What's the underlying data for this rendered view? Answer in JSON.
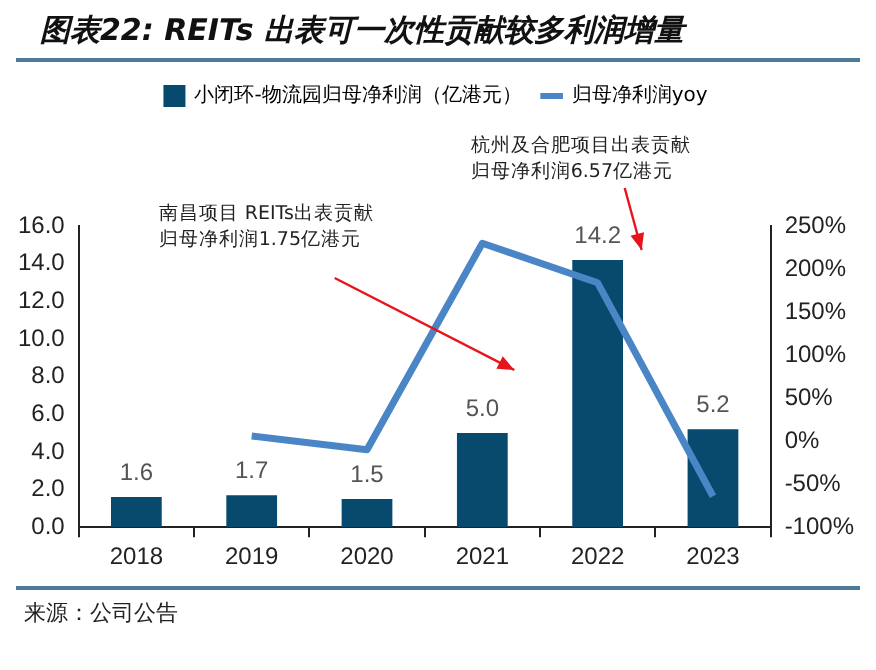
{
  "chart_data": {
    "type": "bar",
    "title": "图表22: REITs 出表可一次性贡献较多利润增量",
    "categories": [
      "2018",
      "2019",
      "2020",
      "2021",
      "2022",
      "2023"
    ],
    "series": [
      {
        "name": "小闭环-物流园归母净利润（亿港元）",
        "color": "#074a6e",
        "values": [
          1.6,
          1.7,
          1.5,
          5.0,
          14.2,
          5.2
        ],
        "value_labels": [
          "1.6",
          "1.7",
          "1.5",
          "5.0",
          "14.2",
          "5.2"
        ]
      },
      {
        "name": "归母净利润yoy",
        "type": "line",
        "axis": "y2",
        "color": "#4a86c5",
        "values": [
          null,
          6,
          -10,
          230,
          184,
          -64
        ]
      }
    ],
    "ylim": [
      0,
      16
    ],
    "yticks": [
      {
        "value": 0,
        "label": "0.0"
      },
      {
        "value": 2,
        "label": "2.0"
      },
      {
        "value": 4,
        "label": "4.0"
      },
      {
        "value": 6,
        "label": "6.0"
      },
      {
        "value": 8,
        "label": "8.0"
      },
      {
        "value": 10,
        "label": "10.0"
      },
      {
        "value": 12,
        "label": "12.0"
      },
      {
        "value": 14,
        "label": "14.0"
      },
      {
        "value": 16,
        "label": "16.0"
      }
    ],
    "y2lim": [
      -100,
      250
    ],
    "y2ticks": [
      {
        "value": -100,
        "label": "-100%"
      },
      {
        "value": -50,
        "label": "-50%"
      },
      {
        "value": 0,
        "label": "0%"
      },
      {
        "value": 50,
        "label": "50%"
      },
      {
        "value": 100,
        "label": "100%"
      },
      {
        "value": 150,
        "label": "150%"
      },
      {
        "value": 200,
        "label": "200%"
      },
      {
        "value": 250,
        "label": "250%"
      }
    ],
    "grid": false,
    "legend": "top",
    "marker": "none",
    "line_style": "solid",
    "annotations": [
      "南昌项目 REITs出表贡献归母净利润1.75亿港元",
      "杭州及合肥项目出表贡献归母净利润6.57亿港元",
      "来源：公司公告"
    ]
  }
}
